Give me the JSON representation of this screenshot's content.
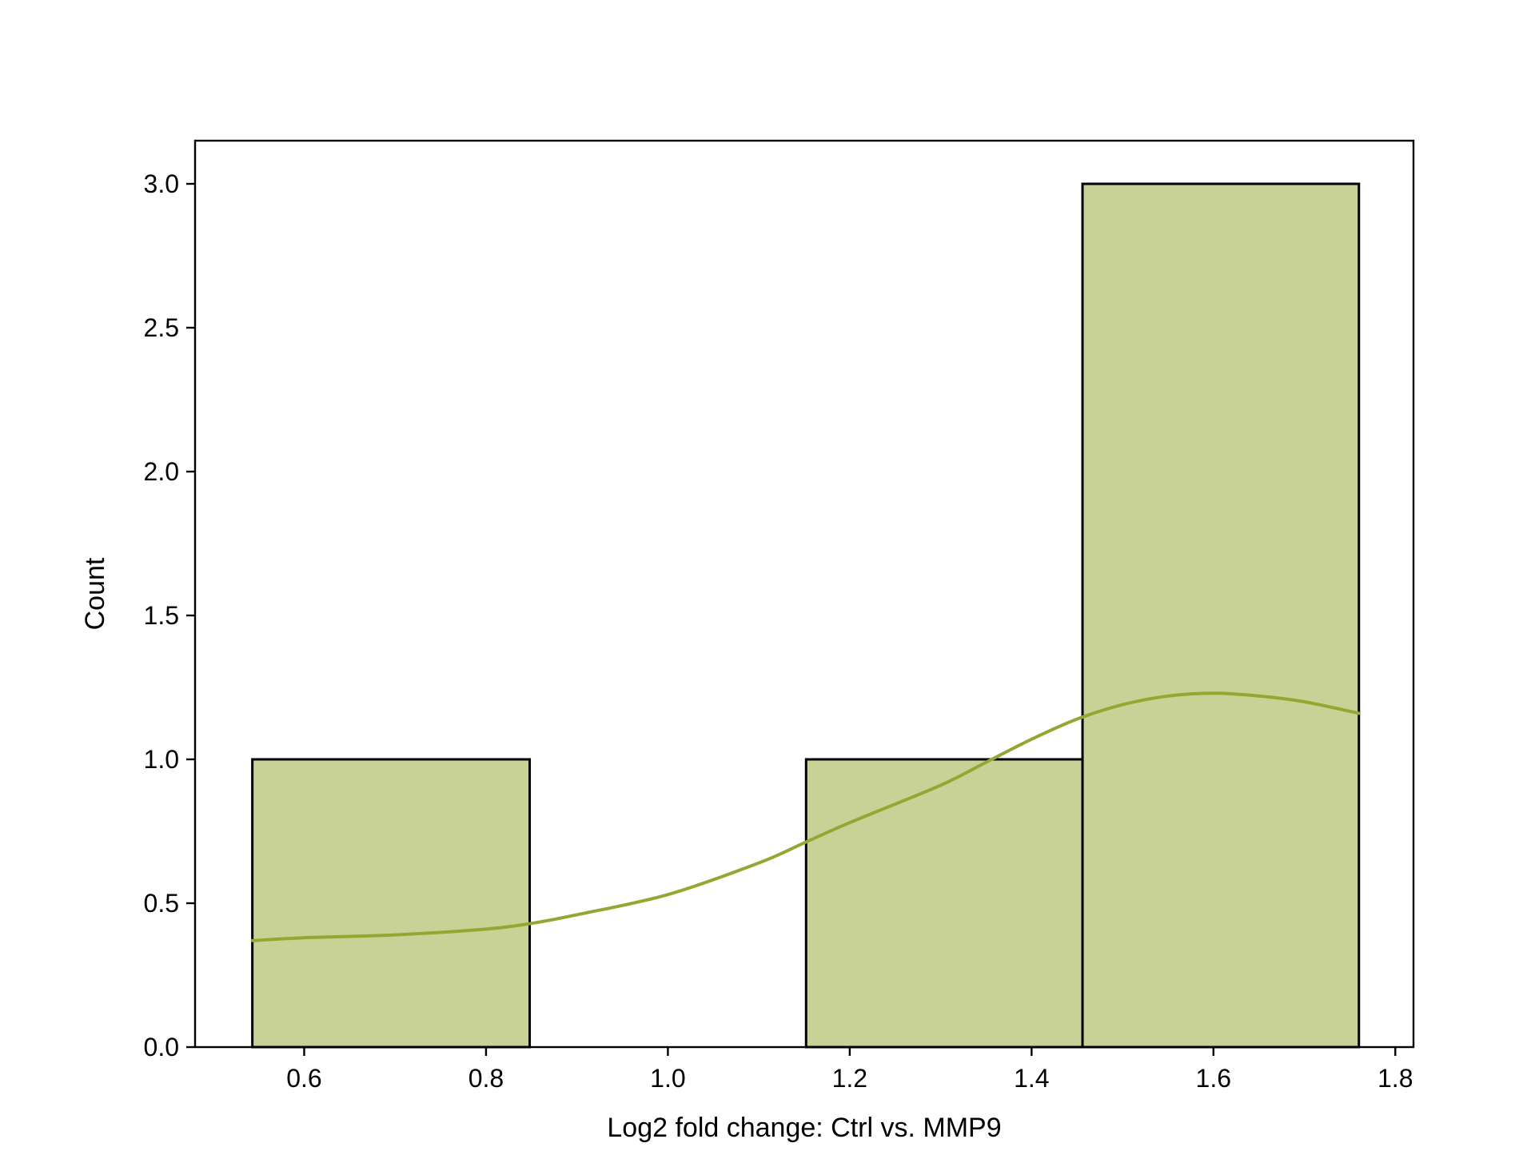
{
  "chart_data": {
    "type": "bar",
    "subtype": "histogram-with-kde",
    "title": "",
    "xlabel": "Log2 fold change: Ctrl vs. MMP9",
    "ylabel": "Count",
    "xlim": [
      0.48,
      1.82
    ],
    "ylim": [
      0,
      3.15
    ],
    "xticks": [
      0.6,
      0.8,
      1.0,
      1.2,
      1.4,
      1.6,
      1.8
    ],
    "xtick_labels": [
      "0.6",
      "0.8",
      "1.0",
      "1.2",
      "1.4",
      "1.6",
      "1.8"
    ],
    "yticks": [
      0.0,
      0.5,
      1.0,
      1.5,
      2.0,
      2.5,
      3.0
    ],
    "ytick_labels": [
      "0.0",
      "0.5",
      "1.0",
      "1.5",
      "2.0",
      "2.5",
      "3.0"
    ],
    "bins": [
      {
        "x0": 0.543,
        "x1": 0.848,
        "count": 1
      },
      {
        "x0": 0.848,
        "x1": 1.152,
        "count": 0
      },
      {
        "x0": 1.152,
        "x1": 1.456,
        "count": 1
      },
      {
        "x0": 1.456,
        "x1": 1.76,
        "count": 3
      }
    ],
    "kde": {
      "x": [
        0.543,
        0.6,
        0.7,
        0.8,
        0.85,
        0.9,
        1.0,
        1.1,
        1.15,
        1.2,
        1.3,
        1.35,
        1.4,
        1.45,
        1.5,
        1.55,
        1.6,
        1.65,
        1.7,
        1.76
      ],
      "y": [
        0.37,
        0.38,
        0.39,
        0.41,
        0.43,
        0.46,
        0.53,
        0.64,
        0.71,
        0.78,
        0.91,
        0.99,
        1.07,
        1.14,
        1.19,
        1.22,
        1.23,
        1.22,
        1.2,
        1.16
      ]
    },
    "grid": false,
    "legend": "none",
    "colors": {
      "bar_fill": "#c9d296",
      "bar_edge": "#000000",
      "kde_line": "#94a733",
      "axes": "#000000"
    }
  }
}
